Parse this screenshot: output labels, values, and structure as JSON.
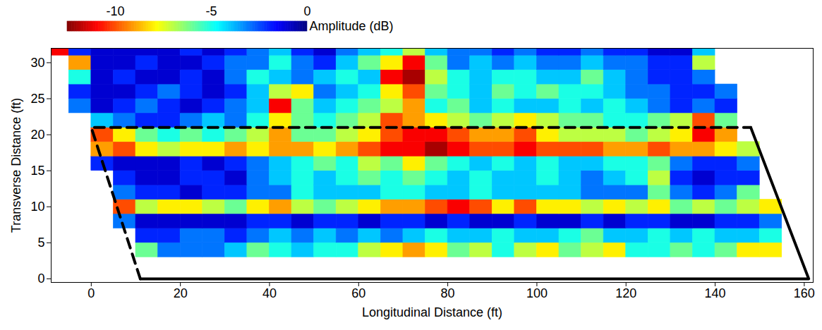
{
  "chart_data": {
    "type": "heatmap",
    "xlabel": "Longitudinal Distance (ft)",
    "ylabel": "Transverse Distance (ft)",
    "xlim": [
      -9,
      162
    ],
    "ylim": [
      -0.5,
      32
    ],
    "xticks": [
      0,
      20,
      40,
      60,
      80,
      100,
      120,
      140,
      160
    ],
    "yticks": [
      0,
      5,
      10,
      15,
      20,
      25,
      30
    ],
    "colorbar": {
      "label": "Amplitude (dB)",
      "range": [
        -12.5,
        0
      ],
      "ticks": [
        -10,
        -5,
        0
      ]
    },
    "x_edges": [
      -10,
      -5,
      0,
      5,
      10,
      15,
      20,
      25,
      30,
      35,
      40,
      45,
      50,
      55,
      60,
      65,
      70,
      75,
      80,
      85,
      90,
      95,
      100,
      105,
      110,
      115,
      120,
      125,
      130,
      135,
      140,
      145,
      150,
      155,
      160
    ],
    "y_edges": [
      3,
      5,
      7,
      9,
      11,
      13,
      15,
      17,
      19,
      21,
      23,
      25,
      27,
      29,
      31,
      32
    ],
    "cells": [
      [
        null,
        null,
        null,
        null,
        -6,
        -3,
        -3,
        -3,
        -4,
        -6,
        -5,
        -4,
        -5,
        -5,
        -7,
        -8,
        -9,
        -8,
        -6,
        -7,
        -5,
        -7,
        -8,
        -6,
        -7,
        -8,
        -5,
        -5,
        -6,
        -5,
        -6,
        -8,
        -8,
        null
      ],
      [
        null,
        null,
        null,
        null,
        -2,
        -2,
        -3,
        -3,
        -2,
        -3,
        -4,
        -3,
        -4,
        -3,
        -4,
        -3,
        -4,
        -5,
        -4,
        -4,
        -5,
        -4,
        -4,
        -5,
        -6,
        -4,
        -4,
        -5,
        -4,
        -5,
        -4,
        -4,
        -5,
        null
      ],
      [
        null,
        null,
        null,
        -3,
        -1,
        -1,
        -1,
        -1,
        -1,
        -2,
        -2,
        -1,
        -2,
        -2,
        -1,
        -2,
        -2,
        -1,
        -2,
        -1,
        -1,
        -2,
        -1,
        -1,
        -2,
        -1,
        -2,
        -2,
        -1,
        -1,
        -2,
        -2,
        -3,
        null
      ],
      [
        null,
        null,
        null,
        -10,
        -7,
        -8,
        -8,
        -7,
        -6,
        -8,
        -9,
        -7,
        -6,
        -7,
        -8,
        -9,
        -9,
        -10,
        -11,
        -10,
        -8,
        -10,
        -8,
        -8,
        -7,
        -8,
        -7,
        -8,
        -6,
        -7,
        -6,
        -7,
        -8,
        null
      ],
      [
        null,
        null,
        null,
        -3,
        -2,
        -2,
        -1,
        -2,
        -2,
        -3,
        -3,
        -5,
        -4,
        -4,
        -4,
        -5,
        -5,
        -4,
        -4,
        -5,
        -4,
        -4,
        -4,
        -4,
        -3,
        -3,
        -3,
        -6,
        -3,
        -2,
        -3,
        -6,
        null,
        null
      ],
      [
        null,
        null,
        null,
        -2,
        -1,
        -1,
        -2,
        -2,
        -1,
        -3,
        -4,
        -5,
        -4,
        -5,
        -6,
        -5,
        -6,
        -5,
        -4,
        -5,
        -4,
        -4,
        -5,
        -4,
        -3,
        -4,
        -5,
        -7,
        -2,
        -1,
        -2,
        -2,
        null,
        null
      ],
      [
        null,
        null,
        -2,
        -1,
        -1,
        -1,
        -2,
        -1,
        -2,
        -3,
        -4,
        -5,
        -6,
        -5,
        -7,
        -6,
        -8,
        -6,
        -5,
        -4,
        -5,
        -4,
        -5,
        -4,
        -4,
        -5,
        -5,
        -6,
        -3,
        -2,
        -2,
        -3,
        null,
        null
      ],
      [
        null,
        null,
        -9,
        -10,
        -8,
        -7,
        -8,
        -8,
        -9,
        -8,
        -9,
        -9,
        -8,
        -9,
        -10,
        -11,
        -11,
        -12,
        -11,
        -10,
        -10,
        -11,
        -10,
        -10,
        -10,
        -9,
        -9,
        -10,
        -9,
        -9,
        -8,
        -7,
        null,
        null
      ],
      [
        null,
        null,
        -10,
        -8,
        -6,
        -5,
        -6,
        -5,
        -6,
        -7,
        -9,
        -6,
        -6,
        -7,
        -8,
        -10,
        -11,
        -11,
        -10,
        -9,
        -9,
        -10,
        -8,
        -7,
        -7,
        -7,
        -6,
        -7,
        -8,
        -11,
        -9,
        null,
        null,
        null
      ],
      [
        null,
        null,
        -4,
        -3,
        -2,
        -2,
        -3,
        -4,
        -3,
        -5,
        -8,
        -6,
        -5,
        -6,
        -7,
        -10,
        -9,
        -8,
        -7,
        -6,
        -7,
        -8,
        -7,
        -6,
        -6,
        -5,
        -5,
        -6,
        -7,
        -10,
        -6,
        null,
        null,
        null
      ],
      [
        null,
        -3,
        -1,
        -2,
        -3,
        -2,
        -1,
        -2,
        -3,
        -4,
        -11,
        -6,
        -4,
        -5,
        -6,
        -7,
        -9,
        -5,
        -6,
        -4,
        -5,
        -4,
        -4,
        -5,
        -4,
        -5,
        -4,
        -3,
        -2,
        -3,
        -2,
        null,
        null,
        null
      ],
      [
        null,
        -2,
        -1,
        -1,
        -2,
        -3,
        -2,
        -1,
        -2,
        -4,
        -7,
        -8,
        -3,
        -4,
        -5,
        -8,
        -10,
        -6,
        -5,
        -4,
        -6,
        -5,
        -6,
        -5,
        -5,
        -4,
        -3,
        -3,
        -2,
        -2,
        -3,
        null,
        null,
        null
      ],
      [
        null,
        -5,
        -1,
        -2,
        -1,
        -1,
        -2,
        -1,
        -3,
        -5,
        -4,
        -3,
        -4,
        -5,
        -4,
        -11,
        -12,
        -7,
        -5,
        -4,
        -5,
        -5,
        -4,
        -4,
        -6,
        -4,
        -3,
        -2,
        -2,
        -3,
        null,
        null,
        null,
        null
      ],
      [
        null,
        -9,
        -1,
        -1,
        -2,
        -1,
        -1,
        -2,
        -3,
        -3,
        -5,
        -3,
        -2,
        -4,
        -6,
        -8,
        -11,
        -6,
        -3,
        -4,
        -3,
        -4,
        -3,
        -3,
        -4,
        -3,
        -3,
        -2,
        -2,
        -7,
        null,
        null,
        null,
        null
      ],
      [
        -11,
        -2,
        -1,
        -1,
        -1,
        -1,
        -2,
        -1,
        -2,
        -3,
        -4,
        -2,
        -1,
        -3,
        -4,
        -5,
        -7,
        -4,
        -3,
        -3,
        -2,
        -3,
        -2,
        -2,
        -3,
        -2,
        -2,
        -1,
        -1,
        -4,
        null,
        null,
        null,
        null
      ]
    ],
    "series": [
      {
        "type": "line",
        "line_style": "dashed",
        "color": "#000000",
        "x": [
          11,
          0,
          148
        ],
        "y": [
          0,
          21,
          21
        ]
      },
      {
        "type": "line",
        "line_style": "solid",
        "color": "#000000",
        "x": [
          148,
          161,
          11
        ],
        "y": [
          21,
          0,
          0
        ]
      }
    ]
  }
}
